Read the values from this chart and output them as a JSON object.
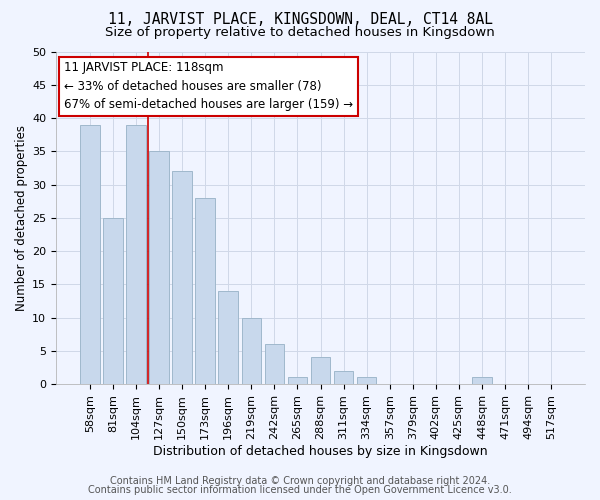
{
  "title": "11, JARVIST PLACE, KINGSDOWN, DEAL, CT14 8AL",
  "subtitle": "Size of property relative to detached houses in Kingsdown",
  "xlabel": "Distribution of detached houses by size in Kingsdown",
  "ylabel": "Number of detached properties",
  "bar_labels": [
    "58sqm",
    "81sqm",
    "104sqm",
    "127sqm",
    "150sqm",
    "173sqm",
    "196sqm",
    "219sqm",
    "242sqm",
    "265sqm",
    "288sqm",
    "311sqm",
    "334sqm",
    "357sqm",
    "379sqm",
    "402sqm",
    "425sqm",
    "448sqm",
    "471sqm",
    "494sqm",
    "517sqm"
  ],
  "bar_values": [
    39,
    25,
    39,
    35,
    32,
    28,
    14,
    10,
    6,
    1,
    4,
    2,
    1,
    0,
    0,
    0,
    0,
    1,
    0,
    0,
    0
  ],
  "bar_color": "#c8d8ec",
  "bar_edge_color": "#a0b8cc",
  "vline_x": 2.5,
  "vline_color": "#cc0000",
  "ylim": [
    0,
    50
  ],
  "yticks": [
    0,
    5,
    10,
    15,
    20,
    25,
    30,
    35,
    40,
    45,
    50
  ],
  "annotation_title": "11 JARVIST PLACE: 118sqm",
  "annotation_line1": "← 33% of detached houses are smaller (78)",
  "annotation_line2": "67% of semi-detached houses are larger (159) →",
  "annotation_box_color": "#ffffff",
  "annotation_box_edge": "#cc0000",
  "footer_line1": "Contains HM Land Registry data © Crown copyright and database right 2024.",
  "footer_line2": "Contains public sector information licensed under the Open Government Licence v3.0.",
  "grid_color": "#d0d8e8",
  "background_color": "#f0f4ff",
  "title_fontsize": 10.5,
  "subtitle_fontsize": 9.5,
  "xlabel_fontsize": 9,
  "ylabel_fontsize": 8.5,
  "footer_fontsize": 7,
  "tick_fontsize": 8,
  "annot_fontsize": 8.5
}
